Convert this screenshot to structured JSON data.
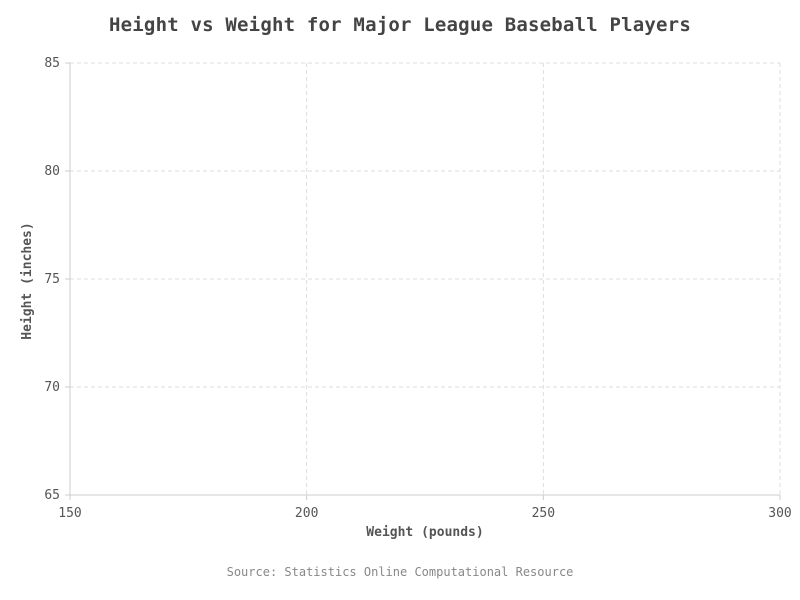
{
  "chart_data": {
    "type": "scatter",
    "title": "Height vs Weight for Major League Baseball Players",
    "xlabel": "Weight (pounds)",
    "ylabel": "Height (inches)",
    "xlim": [
      150,
      300
    ],
    "ylim": [
      65,
      85
    ],
    "x_ticks": [
      150,
      200,
      250,
      300
    ],
    "y_ticks": [
      65,
      70,
      75,
      80,
      85
    ],
    "grid": true,
    "series": [
      {
        "x": [],
        "y": []
      }
    ],
    "source": "Source: Statistics Online Computational Resource",
    "colors": {
      "grid": "#dddddd",
      "axis": "#cccccc",
      "text": "#555555",
      "title": "#444444",
      "source": "#888888"
    }
  }
}
